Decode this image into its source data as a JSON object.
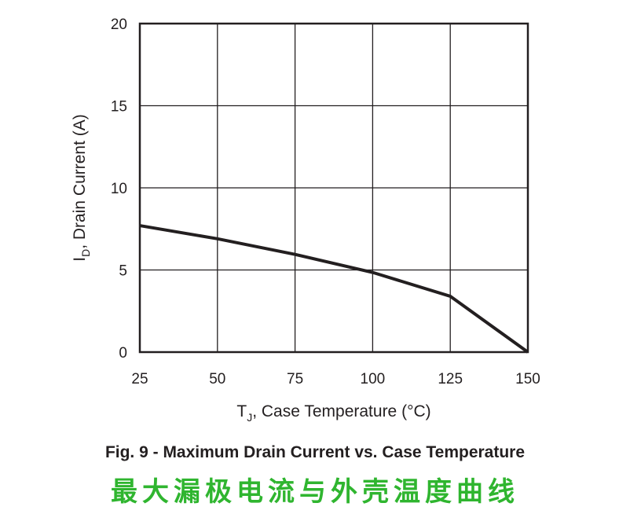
{
  "chart_data": {
    "type": "line",
    "title": "Fig. 9 - Maximum Drain Current vs. Case Temperature",
    "subtitle": "最大漏极电流与外壳温度曲线",
    "xlabel_main": "T",
    "xlabel_sub": "J",
    "xlabel_rest": ", Case Temperature (°C)",
    "ylabel_main": "I",
    "ylabel_sub": "D",
    "ylabel_rest": ", Drain Current (A)",
    "xlim": [
      25,
      150
    ],
    "ylim": [
      0,
      20
    ],
    "xticks": [
      25,
      50,
      75,
      100,
      125,
      150
    ],
    "yticks": [
      0,
      5,
      10,
      15,
      20
    ],
    "grid": true,
    "series": [
      {
        "x": [
          25,
          50,
          75,
          100,
          125,
          150
        ],
        "y": [
          7.7,
          6.9,
          5.95,
          4.85,
          3.4,
          0
        ]
      }
    ],
    "colors": {
      "line": "#231f20",
      "subtitle": "#2fb52f"
    }
  }
}
